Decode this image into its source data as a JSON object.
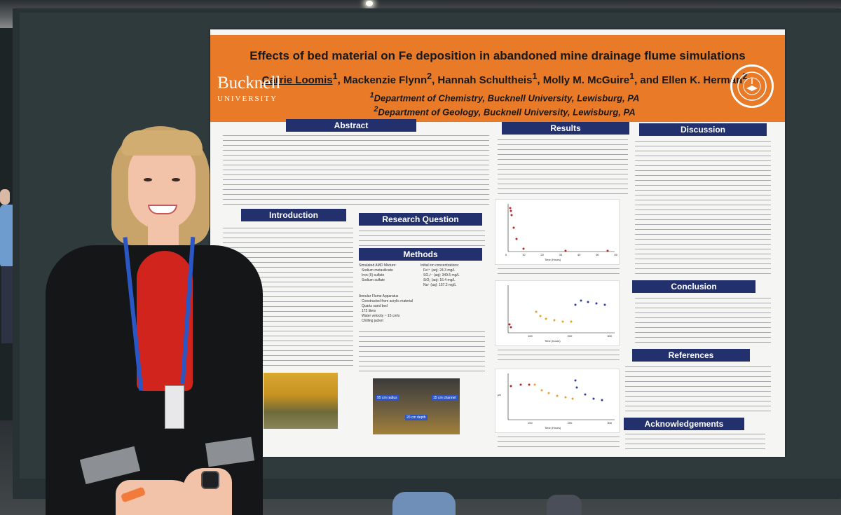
{
  "poster": {
    "title": "Effects of bed material on Fe deposition in abandoned mine drainage flume simulations",
    "authors": {
      "a1": "Carrie Loomis",
      "a2": "Mackenzie Flynn",
      "a3": "Hannah Schultheis",
      "a4": "Molly M. McGuire",
      "a5": "and Ellen K. Herman",
      "sup1": "1",
      "sup2": "2"
    },
    "affiliation1": "Department of Chemistry, Bucknell University, Lewisburg, PA",
    "affiliation2": "Department of Geology, Bucknell University, Lewisburg, PA",
    "logo_text": "Bucknell",
    "logo_sub": "UNIVERSITY",
    "sections": {
      "abstract": "Abstract",
      "introduction": "Introduction",
      "research_question": "Research Question",
      "methods": "Methods",
      "results": "Results",
      "discussion": "Discussion",
      "conclusion": "Conclusion",
      "references": "References",
      "acknowledgements": "Acknowledgements"
    },
    "methods_lists": {
      "mixture_label": "Simulated AMD Mixture:",
      "mixture": [
        "Sodium metasilicate",
        "Iron (II) sulfate",
        "Sodium sulfate"
      ],
      "conc_label": "Initial ion concentrations:",
      "conc": [
        "Fe²⁺ (aq): 24.3 mg/L",
        "SO₄²⁻ (aq): 349.5 mg/L",
        "SiO₂ (aq): 16.4 mg/L",
        "Na⁺ (aq): 157.2 mg/L"
      ],
      "flume_label": "Annular Flume Apparatus",
      "flume": [
        "Constructed from acrylic material",
        "Quartz sand bed",
        "172 liters",
        "Water velocity ~ 15 cm/s",
        "Chilling jacket"
      ],
      "photo_labels": [
        "95 cm radius",
        "15 cm channel",
        "20 cm depth"
      ]
    },
    "figure_axes": {
      "fig3_x": "Time (Hours)",
      "fig3_ticks": [
        "0",
        "10",
        "20",
        "30",
        "40",
        "50",
        "60"
      ],
      "fig4_x": "Time (hours)",
      "fig4_ticks": [
        "100",
        "200",
        "300"
      ],
      "fig5_x": "Time (Hours)",
      "fig5_ticks": [
        "100",
        "200",
        "300"
      ],
      "fig5_y": "pH"
    }
  },
  "colors": {
    "banner": "#e87a28",
    "section_header": "#22306e",
    "poster_bg": "#f5f6f3",
    "shirt": "#d0241c",
    "blazer": "#141618",
    "lanyard": "#2b57c4"
  },
  "icons": [
    "university-seal-icon",
    "watch-icon",
    "wristband-icon"
  ]
}
